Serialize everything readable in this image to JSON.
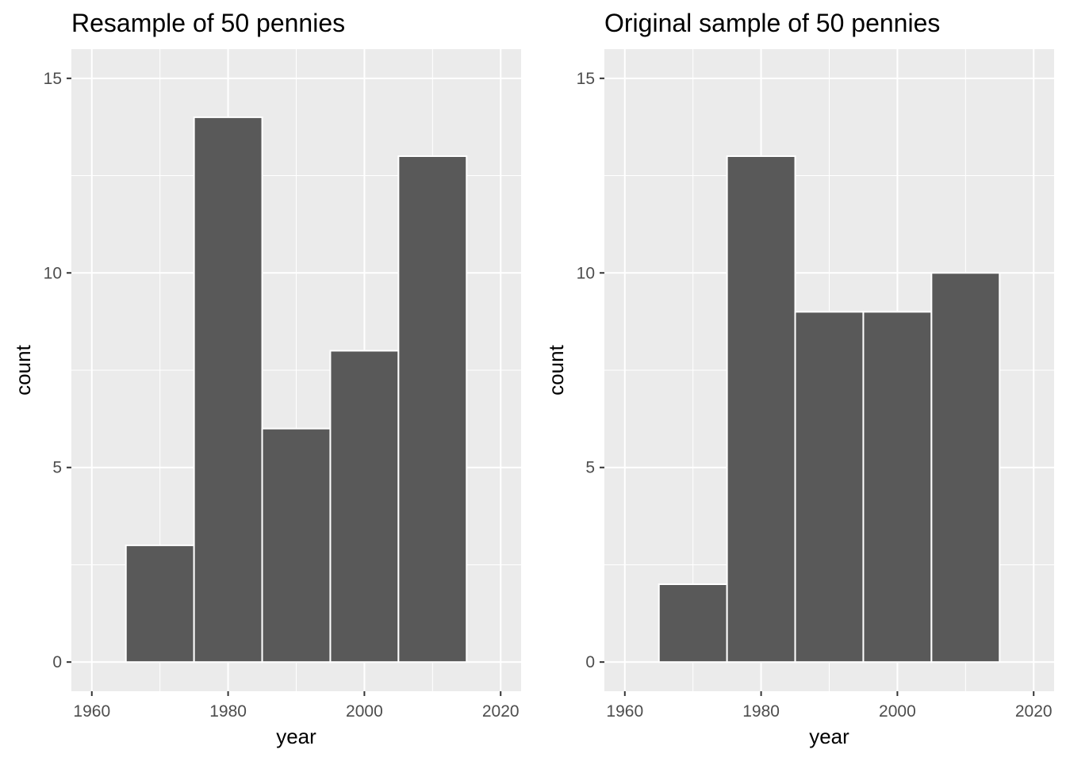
{
  "chart_data": [
    {
      "type": "bar",
      "title": "Resample of 50 pennies",
      "xlabel": "year",
      "ylabel": "count",
      "bins": [
        {
          "x_start": 1965,
          "x_end": 1975,
          "count": 3
        },
        {
          "x_start": 1975,
          "x_end": 1985,
          "count": 14
        },
        {
          "x_start": 1985,
          "x_end": 1995,
          "count": 6
        },
        {
          "x_start": 1995,
          "x_end": 2005,
          "count": 8
        },
        {
          "x_start": 2005,
          "x_end": 2015,
          "count": 13
        }
      ],
      "xticks": [
        1960,
        1980,
        2000,
        2020
      ],
      "xtick_labels": [
        "1960",
        "1980",
        "2000",
        "2020"
      ],
      "yticks": [
        0,
        5,
        10,
        15
      ],
      "ytick_labels": [
        "0",
        "5",
        "10",
        "15"
      ],
      "xlim": [
        1957,
        2023
      ],
      "ylim": [
        -0.75,
        15.75
      ],
      "grid": true,
      "bar_color": "#595959",
      "bar_outline": "#ffffff",
      "panel_background": "#ebebeb"
    },
    {
      "type": "bar",
      "title": "Original sample of 50 pennies",
      "xlabel": "year",
      "ylabel": "count",
      "bins": [
        {
          "x_start": 1965,
          "x_end": 1975,
          "count": 2
        },
        {
          "x_start": 1975,
          "x_end": 1985,
          "count": 13
        },
        {
          "x_start": 1985,
          "x_end": 1995,
          "count": 9
        },
        {
          "x_start": 1995,
          "x_end": 2005,
          "count": 9
        },
        {
          "x_start": 2005,
          "x_end": 2015,
          "count": 10
        }
      ],
      "xticks": [
        1960,
        1980,
        2000,
        2020
      ],
      "xtick_labels": [
        "1960",
        "1980",
        "2000",
        "2020"
      ],
      "yticks": [
        0,
        5,
        10,
        15
      ],
      "ytick_labels": [
        "0",
        "5",
        "10",
        "15"
      ],
      "xlim": [
        1957,
        2023
      ],
      "ylim": [
        -0.75,
        15.75
      ],
      "grid": true,
      "bar_color": "#595959",
      "bar_outline": "#ffffff",
      "panel_background": "#ebebeb"
    }
  ]
}
